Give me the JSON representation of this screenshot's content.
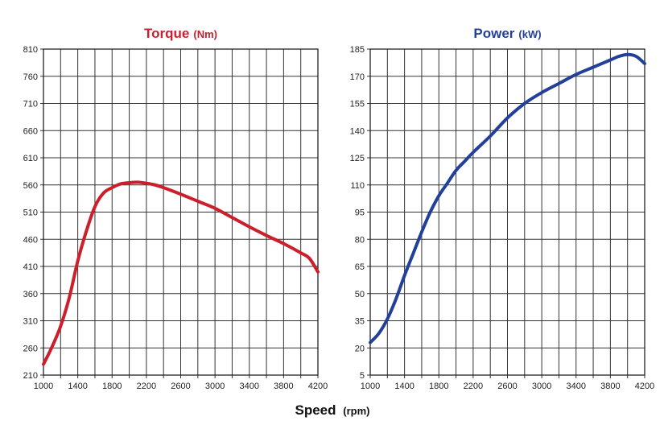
{
  "chart_data": [
    {
      "type": "line",
      "title": "Torque",
      "title_unit": "(Nm)",
      "color": "#cc1f2b",
      "x_ticks": [
        1000,
        1400,
        1800,
        2200,
        2600,
        3000,
        3400,
        3800,
        4200
      ],
      "y_ticks": [
        210,
        260,
        310,
        360,
        410,
        460,
        510,
        560,
        610,
        660,
        710,
        760,
        810
      ],
      "xlim": [
        1000,
        4200
      ],
      "ylim": [
        210,
        810
      ],
      "grid": true,
      "series": [
        {
          "name": "Torque",
          "x": [
            1000,
            1100,
            1200,
            1300,
            1400,
            1500,
            1600,
            1700,
            1800,
            1900,
            2000,
            2100,
            2200,
            2300,
            2400,
            2600,
            2800,
            3000,
            3200,
            3400,
            3600,
            3800,
            4000,
            4100,
            4200
          ],
          "values": [
            230,
            262,
            300,
            352,
            420,
            475,
            520,
            545,
            555,
            562,
            564,
            565,
            563,
            560,
            555,
            543,
            530,
            517,
            500,
            483,
            467,
            452,
            435,
            425,
            400
          ]
        }
      ]
    },
    {
      "type": "line",
      "title": "Power",
      "title_unit": "(kW)",
      "color": "#22409a",
      "x_ticks": [
        1000,
        1400,
        1800,
        2200,
        2600,
        3000,
        3400,
        3800,
        4200
      ],
      "y_ticks": [
        5,
        20,
        35,
        50,
        65,
        80,
        95,
        110,
        125,
        140,
        155,
        170,
        185
      ],
      "xlim": [
        1000,
        4200
      ],
      "ylim": [
        5,
        185
      ],
      "grid": true,
      "series": [
        {
          "name": "Power",
          "x": [
            1000,
            1100,
            1200,
            1300,
            1400,
            1500,
            1600,
            1700,
            1800,
            1900,
            2000,
            2100,
            2200,
            2400,
            2600,
            2800,
            3000,
            3200,
            3400,
            3600,
            3800,
            3900,
            4000,
            4100,
            4200
          ],
          "values": [
            23,
            28,
            36,
            47,
            60,
            72,
            84,
            95,
            104,
            111,
            118,
            123,
            128,
            137,
            147,
            155,
            161,
            166,
            171,
            175,
            179,
            181,
            182,
            181,
            177
          ]
        }
      ]
    }
  ],
  "shared_xlabel": "Speed",
  "shared_xlabel_unit": "(rpm)"
}
